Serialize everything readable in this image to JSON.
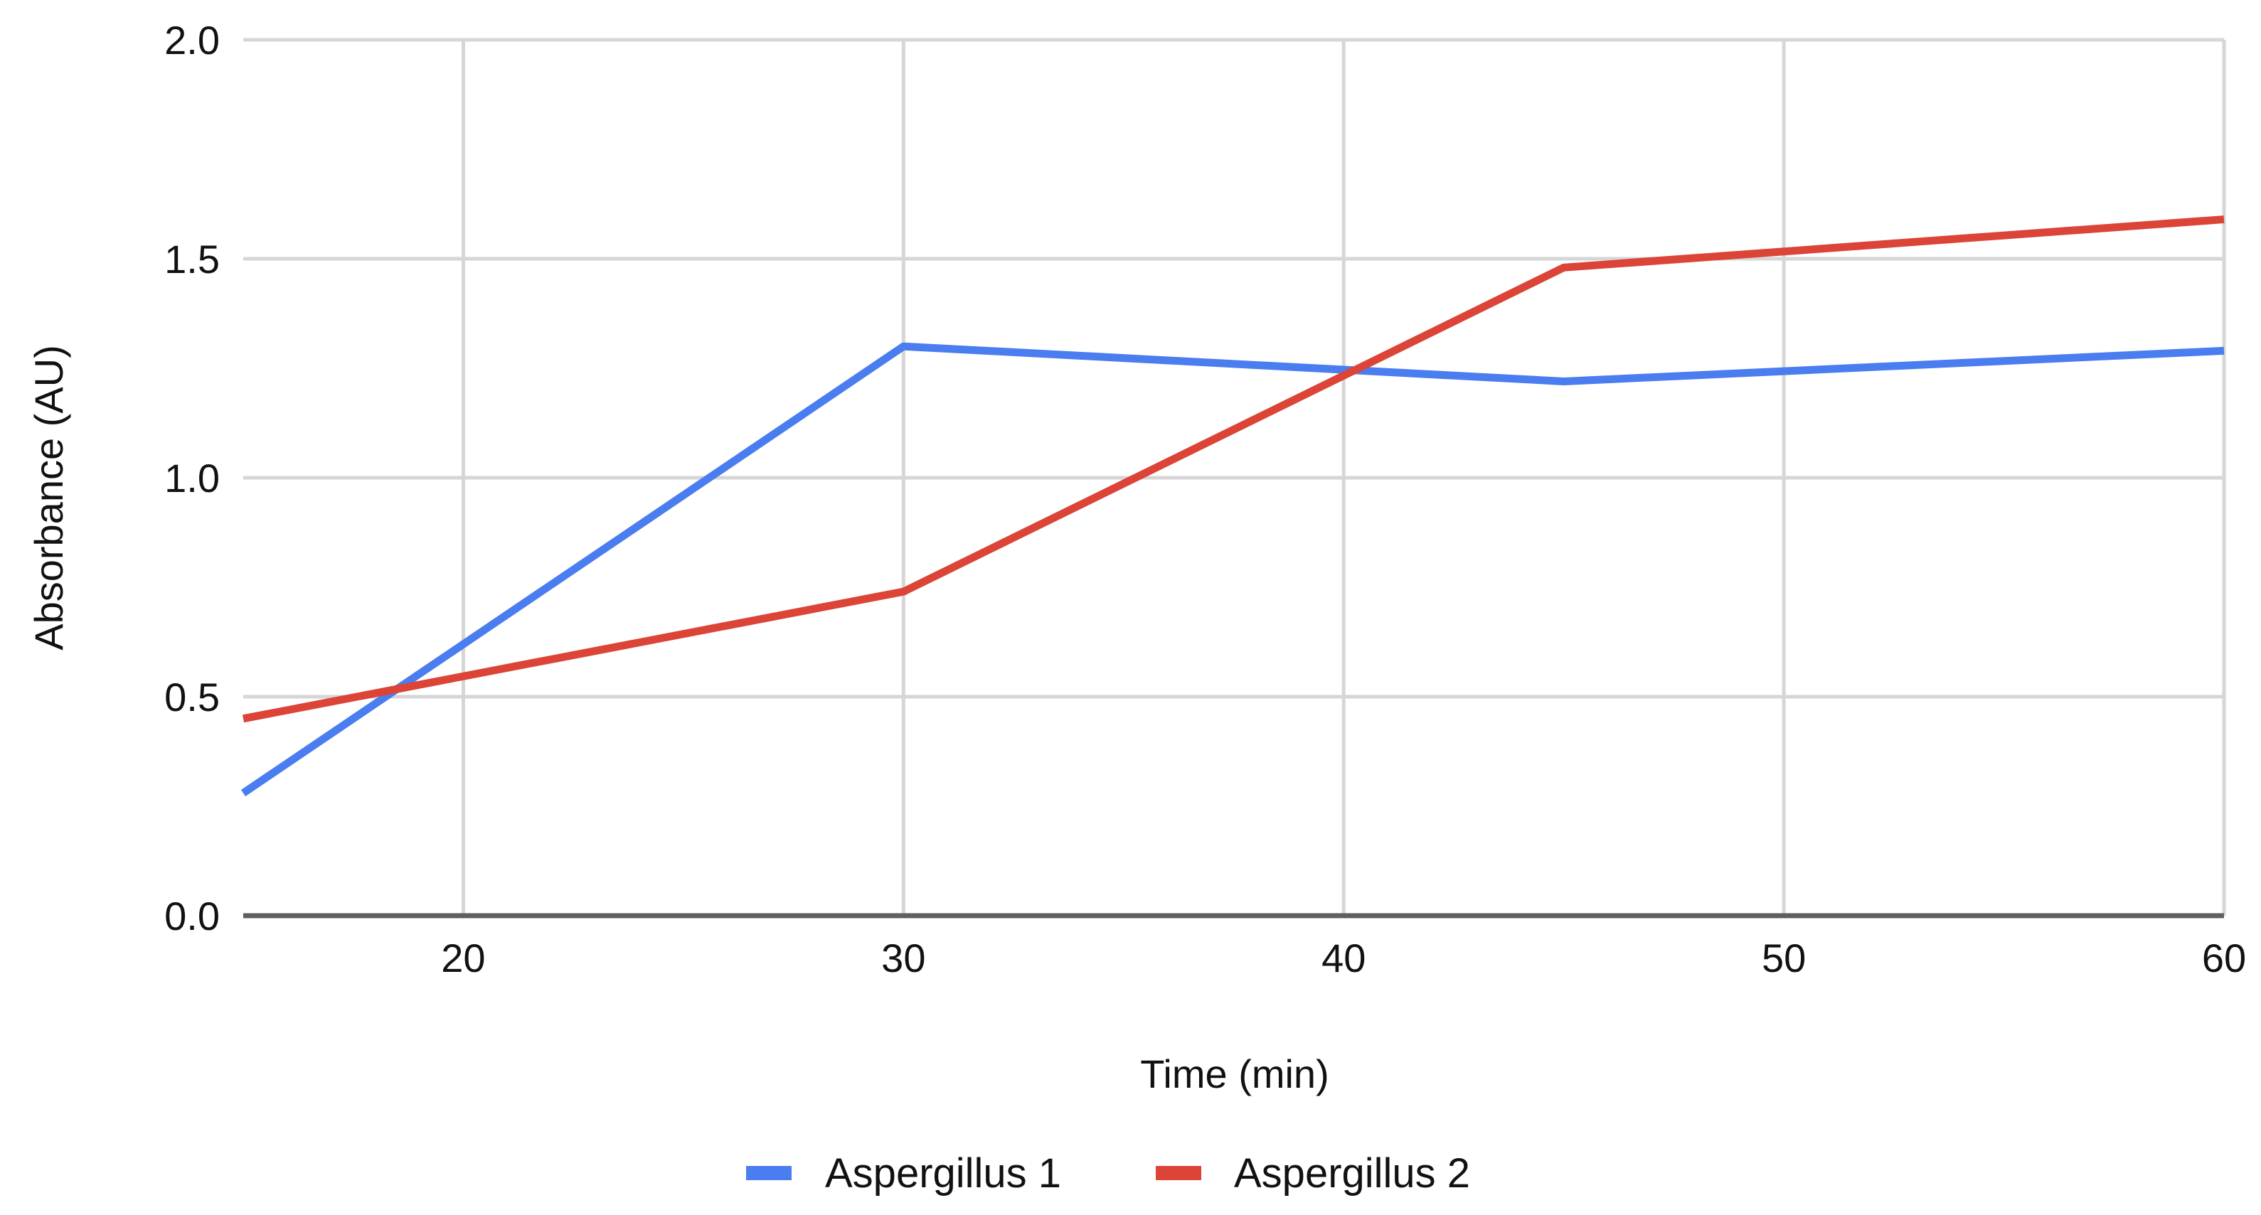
{
  "chart_data": {
    "type": "line",
    "title": "",
    "xlabel": "Time (min)",
    "ylabel": "Absorbance (AU)",
    "x": [
      15,
      30,
      45,
      60
    ],
    "series": [
      {
        "name": "Aspergillus 1",
        "color": "#4a7df0",
        "values": [
          0.28,
          1.3,
          1.22,
          1.29
        ]
      },
      {
        "name": "Aspergillus 2",
        "color": "#db4437",
        "values": [
          0.45,
          0.74,
          1.48,
          1.59
        ]
      }
    ],
    "xlim": [
      15,
      60
    ],
    "ylim": [
      0,
      2.0
    ],
    "x_ticks": [
      "20",
      "30",
      "40",
      "50",
      "60"
    ],
    "y_ticks": [
      "0.0",
      "0.5",
      "1.0",
      "1.5",
      "2.0"
    ],
    "grid": true,
    "legend_position": "bottom"
  }
}
